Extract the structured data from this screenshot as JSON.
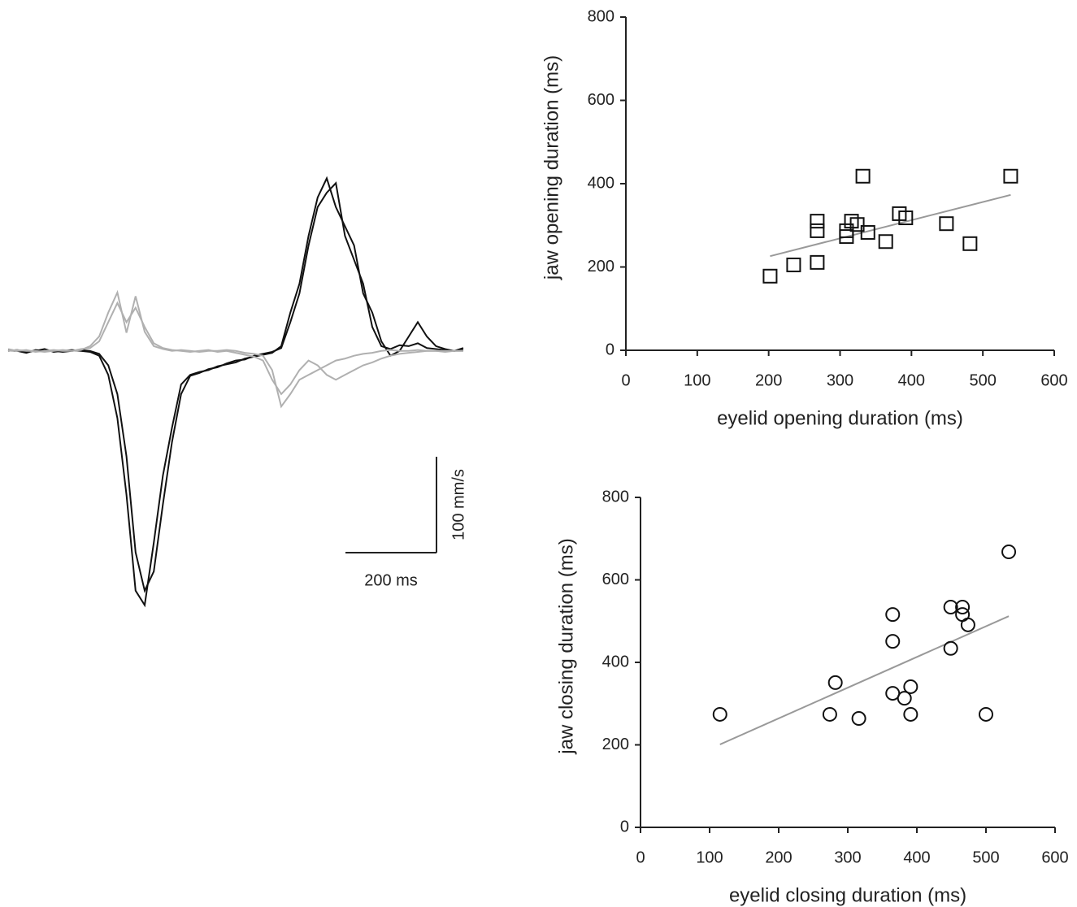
{
  "chart_data": [
    {
      "type": "line",
      "xlim": [
        0,
        1000
      ],
      "ylim": [
        -290,
        210
      ],
      "x": [
        0,
        20,
        40,
        60,
        80,
        100,
        120,
        140,
        160,
        180,
        200,
        220,
        240,
        260,
        280,
        300,
        320,
        340,
        360,
        380,
        400,
        420,
        440,
        460,
        480,
        500,
        520,
        540,
        560,
        580,
        600,
        620,
        640,
        660,
        680,
        700,
        720,
        740,
        760,
        780,
        800,
        820,
        840,
        860,
        880,
        900,
        920,
        940,
        960,
        980,
        1000
      ],
      "series": [
        {
          "color": "#111111",
          "values": [
            0,
            1,
            -1,
            0,
            2,
            -1,
            0,
            1,
            0,
            -1,
            -5,
            -25,
            -70,
            -150,
            -250,
            -265,
            -200,
            -130,
            -80,
            -35,
            -25,
            -22,
            -20,
            -16,
            -14,
            -12,
            -8,
            -6,
            -4,
            -2,
            5,
            40,
            70,
            120,
            160,
            180,
            150,
            130,
            110,
            60,
            40,
            10,
            -5,
            0,
            15,
            30,
            15,
            5,
            2,
            0,
            3
          ]
        },
        {
          "color": "#111111",
          "values": [
            1,
            0,
            -2,
            1,
            0,
            0,
            -1,
            0,
            1,
            0,
            -3,
            -15,
            -45,
            -110,
            -210,
            -250,
            -230,
            -160,
            -95,
            -45,
            -26,
            -23,
            -19,
            -17,
            -13,
            -10,
            -9,
            -5,
            -3,
            -1,
            3,
            30,
            60,
            110,
            150,
            165,
            175,
            120,
            95,
            70,
            25,
            5,
            2,
            6,
            5,
            8,
            3,
            2,
            1,
            0,
            1
          ]
        },
        {
          "color": "#b0b0b0",
          "values": [
            2,
            0,
            1,
            -1,
            0,
            1,
            0,
            0,
            1,
            5,
            15,
            40,
            61,
            19,
            57,
            20,
            5,
            2,
            0,
            1,
            0,
            -1,
            0,
            0,
            1,
            0,
            -2,
            -3,
            -5,
            -20,
            -58,
            -45,
            -30,
            -25,
            -20,
            -15,
            -10,
            -8,
            -5,
            -3,
            -2,
            0,
            1,
            0,
            0,
            1,
            0,
            0,
            0,
            0,
            0
          ]
        },
        {
          "color": "#b0b0b0",
          "values": [
            0,
            1,
            0,
            0,
            -1,
            0,
            1,
            0,
            2,
            3,
            10,
            30,
            50,
            30,
            45,
            25,
            8,
            3,
            1,
            0,
            -1,
            0,
            1,
            -1,
            0,
            -2,
            -4,
            -6,
            -10,
            -30,
            -45,
            -35,
            -20,
            -10,
            -15,
            -25,
            -30,
            -25,
            -20,
            -15,
            -12,
            -8,
            -5,
            -3,
            -2,
            -1,
            0,
            0,
            -1,
            0,
            0
          ]
        }
      ],
      "scalebar": {
        "x": {
          "value": 200,
          "label": "200 ms"
        },
        "y": {
          "value": 100,
          "label": "100 mm/s"
        }
      }
    },
    {
      "type": "scatter",
      "xlabel": "eyelid opening duration (ms)",
      "ylabel": "jaw opening duration (ms)",
      "xlim": [
        0,
        600
      ],
      "ylim": [
        0,
        800
      ],
      "xticks": [
        0,
        100,
        200,
        300,
        400,
        500,
        600
      ],
      "yticks": [
        0,
        200,
        400,
        600,
        800
      ],
      "marker": "square",
      "series": [
        {
          "color": "#111111",
          "x": [
            202,
            235,
            268,
            268,
            268,
            309,
            309,
            316,
            324,
            332,
            339,
            364,
            383,
            392,
            449,
            482,
            539
          ],
          "values": [
            178,
            205,
            211,
            287,
            310,
            273,
            287,
            310,
            302,
            418,
            283,
            261,
            328,
            318,
            304,
            256,
            418
          ]
        }
      ],
      "fit": {
        "color": "#999999",
        "x": [
          202,
          539
        ],
        "values": [
          226,
          373
        ]
      }
    },
    {
      "type": "scatter",
      "xlabel": "eyelid closing duration (ms)",
      "ylabel": "jaw closing duration (ms)",
      "xlim": [
        0,
        600
      ],
      "ylim": [
        0,
        800
      ],
      "xticks": [
        0,
        100,
        200,
        300,
        400,
        500,
        600
      ],
      "yticks": [
        0,
        200,
        400,
        600,
        800
      ],
      "marker": "circle",
      "series": [
        {
          "color": "#111111",
          "x": [
            115,
            274,
            282,
            316,
            365,
            365,
            365,
            382,
            391,
            391,
            449,
            449,
            466,
            466,
            474,
            500,
            533
          ],
          "values": [
            274,
            274,
            351,
            264,
            516,
            451,
            325,
            313,
            341,
            274,
            534,
            434,
            534,
            516,
            491,
            274,
            668
          ]
        }
      ],
      "fit": {
        "color": "#999999",
        "x": [
          115,
          533
        ],
        "values": [
          201,
          512
        ]
      }
    }
  ]
}
